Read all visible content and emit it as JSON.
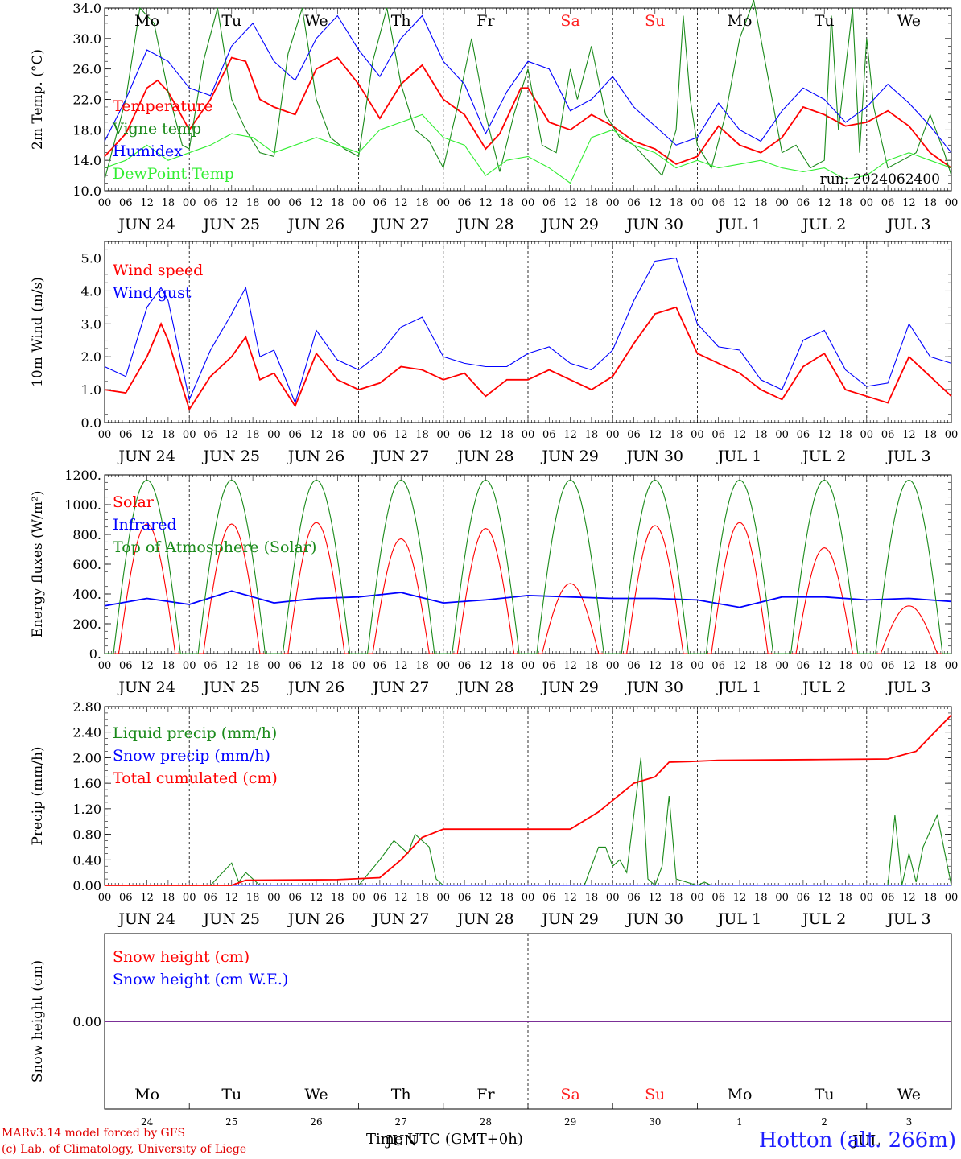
{
  "days": [
    {
      "wd": "Mo",
      "wd_color": "#000000",
      "date": "JUN 24",
      "num": "24"
    },
    {
      "wd": "Tu",
      "wd_color": "#000000",
      "date": "JUN 25",
      "num": "25"
    },
    {
      "wd": "We",
      "wd_color": "#000000",
      "date": "JUN 26",
      "num": "26"
    },
    {
      "wd": "Th",
      "wd_color": "#000000",
      "date": "JUN 27",
      "num": "27"
    },
    {
      "wd": "Fr",
      "wd_color": "#000000",
      "date": "JUN 28",
      "num": "28"
    },
    {
      "wd": "Sa",
      "wd_color": "#ff2020",
      "date": "JUN 29",
      "num": "29"
    },
    {
      "wd": "Su",
      "wd_color": "#ff2020",
      "date": "JUN 30",
      "num": "30"
    },
    {
      "wd": "Mo",
      "wd_color": "#000000",
      "date": "JUL  1",
      "num": "1"
    },
    {
      "wd": "Tu",
      "wd_color": "#000000",
      "date": "JUL  2",
      "num": "2"
    },
    {
      "wd": "We",
      "wd_color": "#000000",
      "date": "JUL  3",
      "num": "3"
    }
  ],
  "hour_ticks": [
    "00",
    "06",
    "12",
    "18"
  ],
  "hour_end": "00",
  "run_label": "run: 2024062400",
  "footer": {
    "credit_line1": "MARv3.14 model forced by GFS",
    "credit_line2": "(c) Lab. of Climatology, University of Liege",
    "x_title": "Time UTC (GMT+0h)",
    "x_month": "JUN",
    "x_month2": "JUL",
    "station": "Hotton (alt. 266m)"
  },
  "chart_data": [
    {
      "type": "line",
      "ylabel": "2m Temp. (°C)",
      "ylim": [
        10,
        34
      ],
      "yticks": [
        "10.0",
        "14.0",
        "18.0",
        "22.0",
        "26.0",
        "30.0",
        "34.0"
      ],
      "ytick_values": [
        10,
        14,
        18,
        22,
        26,
        30,
        34
      ],
      "x_unit": "hours since JUN 24 00 UTC",
      "series": [
        {
          "name": "Temperature",
          "color": "#ff0000",
          "x": [
            0,
            6,
            12,
            15,
            18,
            24,
            30,
            36,
            40,
            44,
            48,
            54,
            60,
            66,
            72,
            78,
            84,
            90,
            96,
            102,
            108,
            112,
            118,
            120,
            126,
            132,
            138,
            144,
            150,
            156,
            162,
            168,
            174,
            180,
            186,
            192,
            198,
            204,
            210,
            216,
            222,
            228,
            234,
            240
          ],
          "values": [
            14.5,
            17.5,
            23.5,
            24.5,
            23,
            18,
            22,
            27.5,
            27,
            22,
            21,
            20,
            26,
            27.5,
            24,
            19.5,
            24,
            26.5,
            22,
            20,
            15.5,
            17.5,
            23.5,
            23.5,
            19,
            18,
            20,
            18.5,
            16.5,
            15.5,
            13.5,
            14.5,
            18.5,
            16,
            15,
            17,
            21,
            20,
            18.5,
            19,
            20.5,
            18.5,
            15,
            13
          ]
        },
        {
          "name": "Vigne temp",
          "color": "#1a8a1a",
          "x": [
            0,
            6,
            10,
            14,
            18,
            22,
            24,
            28,
            32,
            36,
            40,
            44,
            48,
            52,
            56,
            60,
            64,
            68,
            72,
            76,
            80,
            84,
            88,
            92,
            96,
            100,
            104,
            108,
            112,
            116,
            120,
            124,
            128,
            132,
            134,
            138,
            142,
            146,
            150,
            154,
            158,
            162,
            164,
            166,
            168,
            172,
            176,
            180,
            184,
            188,
            192,
            196,
            200,
            204,
            206,
            208,
            212,
            214,
            216,
            218,
            220,
            222,
            226,
            230,
            234,
            238,
            240
          ],
          "values": [
            11.5,
            22,
            34,
            32,
            23,
            16,
            15.5,
            27,
            34,
            22,
            18,
            15,
            14.5,
            28,
            34,
            22,
            17,
            15.5,
            14.5,
            27,
            34,
            24,
            18,
            16.5,
            13,
            21,
            30,
            20,
            12.5,
            20,
            26,
            16,
            15,
            26,
            22,
            29,
            20,
            17,
            16,
            14,
            12,
            18,
            33,
            22,
            16,
            13,
            20,
            30,
            35,
            25,
            15,
            16,
            13,
            14,
            33,
            18,
            34,
            15,
            30,
            21,
            17,
            13,
            14,
            15,
            20,
            15,
            12
          ]
        },
        {
          "name": "Humidex",
          "color": "#0000ff",
          "x": [
            0,
            6,
            12,
            18,
            24,
            30,
            36,
            42,
            48,
            54,
            60,
            66,
            72,
            78,
            84,
            90,
            96,
            102,
            108,
            114,
            120,
            126,
            132,
            138,
            144,
            150,
            156,
            162,
            168,
            174,
            180,
            186,
            192,
            198,
            204,
            210,
            216,
            222,
            228,
            234,
            240
          ],
          "values": [
            16.5,
            22,
            28.5,
            27,
            23.5,
            22.5,
            29,
            32,
            27,
            24.5,
            30,
            33,
            28.5,
            25,
            30,
            33,
            27,
            24,
            17.5,
            23,
            27,
            26,
            20.5,
            22,
            25,
            21,
            18.5,
            16,
            17,
            21.5,
            18,
            16.5,
            20.5,
            23.5,
            22,
            19,
            21,
            24,
            21.5,
            18.5,
            15
          ]
        },
        {
          "name": "DewPoint Temp",
          "color": "#33ee33",
          "x": [
            0,
            6,
            12,
            18,
            24,
            30,
            36,
            42,
            48,
            54,
            60,
            66,
            72,
            78,
            84,
            90,
            96,
            102,
            108,
            114,
            120,
            126,
            132,
            138,
            144,
            150,
            156,
            162,
            168,
            174,
            180,
            186,
            192,
            198,
            204,
            210,
            216,
            222,
            228,
            234,
            240
          ],
          "values": [
            13,
            14,
            16,
            14,
            15,
            16,
            17.5,
            17,
            15,
            16,
            17,
            16,
            15,
            18,
            19,
            20,
            17,
            16,
            12,
            14,
            14.5,
            13,
            11,
            17,
            18,
            16,
            15,
            13,
            14,
            13,
            13.5,
            14,
            13,
            12.5,
            13,
            11.5,
            12,
            14,
            15,
            14,
            13
          ]
        }
      ]
    },
    {
      "type": "line",
      "ylabel": "10m Wind (m/s)",
      "ylim": [
        0,
        5.5
      ],
      "yticks": [
        "0.0",
        "1.0",
        "2.0",
        "3.0",
        "4.0",
        "5.0"
      ],
      "ytick_values": [
        0,
        1,
        2,
        3,
        4,
        5
      ],
      "x_unit": "hours since JUN 24 00 UTC",
      "series": [
        {
          "name": "Wind speed",
          "color": "#ff0000",
          "x": [
            0,
            6,
            12,
            16,
            18,
            24,
            30,
            36,
            40,
            44,
            48,
            54,
            60,
            66,
            72,
            78,
            84,
            90,
            96,
            102,
            108,
            114,
            120,
            126,
            132,
            138,
            144,
            150,
            156,
            162,
            168,
            174,
            180,
            186,
            192,
            198,
            204,
            210,
            216,
            222,
            228,
            234,
            240
          ],
          "values": [
            1,
            0.9,
            2,
            3,
            2.5,
            0.4,
            1.4,
            2,
            2.6,
            1.3,
            1.5,
            0.5,
            2.1,
            1.3,
            1.0,
            1.2,
            1.7,
            1.6,
            1.3,
            1.5,
            0.8,
            1.3,
            1.3,
            1.6,
            1.3,
            1.0,
            1.4,
            2.4,
            3.3,
            3.5,
            2.1,
            1.8,
            1.5,
            1.0,
            0.7,
            1.7,
            2.1,
            1.0,
            0.8,
            0.6,
            2.0,
            1.4,
            0.8
          ]
        },
        {
          "name": "Wind gust",
          "color": "#0000ff",
          "x": [
            0,
            6,
            12,
            16,
            18,
            24,
            30,
            36,
            40,
            44,
            48,
            54,
            60,
            66,
            72,
            78,
            84,
            90,
            96,
            102,
            108,
            114,
            120,
            126,
            132,
            138,
            144,
            150,
            156,
            162,
            168,
            174,
            180,
            186,
            192,
            198,
            204,
            210,
            216,
            222,
            228,
            234,
            240
          ],
          "values": [
            1.7,
            1.4,
            3.5,
            4.1,
            3.7,
            0.7,
            2.2,
            3.3,
            4.1,
            2.0,
            2.2,
            0.6,
            2.8,
            1.9,
            1.6,
            2.1,
            2.9,
            3.2,
            2.0,
            1.8,
            1.7,
            1.7,
            2.1,
            2.3,
            1.8,
            1.6,
            2.2,
            3.7,
            4.9,
            5.0,
            3.0,
            2.3,
            2.2,
            1.3,
            1.0,
            2.5,
            2.8,
            1.6,
            1.1,
            1.2,
            3.0,
            2.0,
            1.8
          ]
        }
      ]
    },
    {
      "type": "line",
      "ylabel": "Energy fluxes (W/m²)",
      "ylim": [
        0,
        1200
      ],
      "yticks": [
        "0.",
        "200.",
        "400.",
        "600.",
        "800.",
        "1000.",
        "1200."
      ],
      "ytick_values": [
        0,
        200,
        400,
        600,
        800,
        1000,
        1200
      ],
      "x_unit": "hours since JUN 24 00 UTC",
      "series": [
        {
          "name": "Solar",
          "color": "#ff0000",
          "peaks": [
            870,
            870,
            880,
            770,
            840,
            470,
            860,
            880,
            710,
            320
          ]
        },
        {
          "name": "Infrared",
          "color": "#0000ff",
          "x": [
            0,
            12,
            24,
            36,
            48,
            60,
            72,
            84,
            96,
            108,
            120,
            132,
            144,
            156,
            168,
            180,
            192,
            204,
            216,
            228,
            240
          ],
          "values": [
            320,
            370,
            330,
            420,
            340,
            370,
            380,
            410,
            340,
            360,
            390,
            380,
            370,
            370,
            360,
            310,
            380,
            380,
            360,
            370,
            350
          ]
        },
        {
          "name": "Top of Atmosphere (Solar)",
          "color": "#1a8a1a",
          "peak": 1165
        }
      ]
    },
    {
      "type": "line",
      "ylabel": "Precip (mm/h)",
      "ylim": [
        0,
        2.8
      ],
      "yticks": [
        "0.00",
        "0.40",
        "0.80",
        "1.20",
        "1.60",
        "2.00",
        "2.40",
        "2.80"
      ],
      "ytick_values": [
        0,
        0.4,
        0.8,
        1.2,
        1.6,
        2,
        2.4,
        2.8
      ],
      "x_unit": "hours since JUN 24 00 UTC",
      "series": [
        {
          "name": "Liquid precip (mm/h)",
          "color": "#1a8a1a",
          "x": [
            0,
            30,
            36,
            38,
            40,
            44,
            72,
            78,
            82,
            86,
            88,
            90,
            92,
            94,
            96,
            98,
            120,
            136,
            138,
            140,
            142,
            144,
            146,
            148,
            150,
            152,
            154,
            156,
            158,
            160,
            162,
            168,
            170,
            172,
            174,
            176,
            178,
            180,
            200,
            222,
            224,
            226,
            228,
            230,
            232,
            236,
            240
          ],
          "values": [
            0,
            0,
            0.35,
            0.05,
            0.2,
            0,
            0,
            0.4,
            0.7,
            0.5,
            0.8,
            0.7,
            0.6,
            0.1,
            0,
            0,
            0,
            0,
            0.3,
            0.6,
            0.6,
            0.3,
            0.4,
            0.2,
            1.1,
            2.0,
            0.1,
            0,
            0.3,
            1.4,
            0.1,
            0,
            0.05,
            0,
            0,
            0,
            0,
            0,
            0,
            0,
            1.1,
            0,
            0.5,
            0.05,
            0.6,
            1.1,
            0
          ]
        },
        {
          "name": "Snow precip (mm/h)",
          "color": "#0000ff",
          "x": [
            0,
            240
          ],
          "values": [
            0,
            0
          ]
        },
        {
          "name": "Total cumulated (cm)",
          "color": "#ff0000",
          "x": [
            0,
            36,
            40,
            66,
            78,
            84,
            90,
            96,
            120,
            132,
            140,
            150,
            156,
            160,
            166,
            174,
            200,
            222,
            230,
            240
          ],
          "values": [
            0,
            0,
            0.08,
            0.09,
            0.12,
            0.4,
            0.75,
            0.88,
            0.88,
            0.88,
            1.15,
            1.6,
            1.7,
            1.93,
            1.94,
            1.96,
            1.97,
            1.98,
            2.1,
            2.67
          ]
        }
      ]
    },
    {
      "type": "line",
      "ylabel": "Snow height (cm)",
      "yticks": [
        "0.00"
      ],
      "x_unit": "hours since JUN 24 00 UTC",
      "series": [
        {
          "name": "Snow height (cm)",
          "color": "#ff0000",
          "x": [
            0,
            240
          ],
          "values": [
            0,
            0
          ]
        },
        {
          "name": "Snow height (cm W.E.)",
          "color": "#0000ff",
          "x": [
            0,
            240
          ],
          "values": [
            0,
            0
          ]
        }
      ]
    }
  ]
}
